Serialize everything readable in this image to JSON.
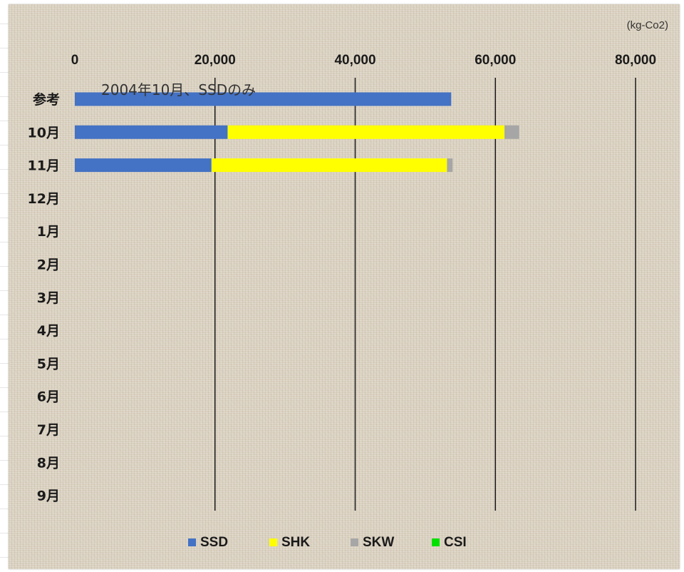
{
  "chart_data": {
    "type": "bar",
    "orientation": "horizontal",
    "stacked": true,
    "unit": "(kg-Co2)",
    "annotation": "2004年10月、SSDのみ",
    "xlim": [
      0,
      80000
    ],
    "xticks": [
      0,
      20000,
      40000,
      60000,
      80000
    ],
    "xtick_labels": [
      "0",
      "20,000",
      "40,000",
      "60,000",
      "80,000"
    ],
    "x_axis_position": "top",
    "grid": "vertical",
    "legend_position": "bottom",
    "categories": [
      "参考",
      "10月",
      "11月",
      "12月",
      "1月",
      "2月",
      "3月",
      "4月",
      "5月",
      "6月",
      "7月",
      "8月",
      "9月"
    ],
    "series": [
      {
        "name": "SSD",
        "color": "#4472c4",
        "values": [
          53700,
          21800,
          19500,
          null,
          null,
          null,
          null,
          null,
          null,
          null,
          null,
          null,
          null
        ]
      },
      {
        "name": "SHK",
        "color": "#ffff00",
        "values": [
          0,
          39500,
          33600,
          null,
          null,
          null,
          null,
          null,
          null,
          null,
          null,
          null,
          null
        ]
      },
      {
        "name": "SKW",
        "color": "#a6a6a6",
        "values": [
          0,
          2100,
          800,
          null,
          null,
          null,
          null,
          null,
          null,
          null,
          null,
          null,
          null
        ]
      },
      {
        "name": "CSI",
        "color": "#00e000",
        "values": [
          0,
          0,
          0,
          null,
          null,
          null,
          null,
          null,
          null,
          null,
          null,
          null,
          null
        ]
      }
    ]
  }
}
